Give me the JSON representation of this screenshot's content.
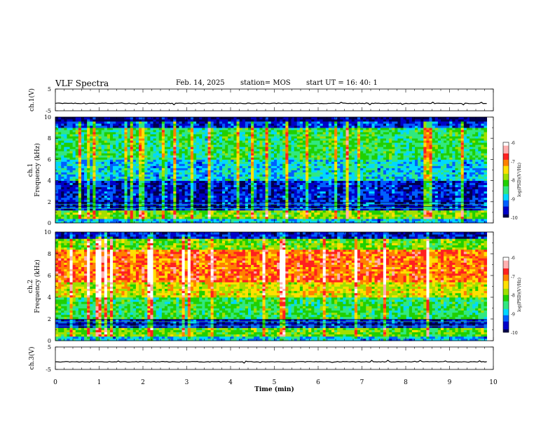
{
  "header": {
    "title": "VLF Spectra",
    "date": "Feb. 14, 2025",
    "station": "station= MOS",
    "start_ut": "start  UT =   16: 40: 1"
  },
  "chart_data": [
    {
      "type": "line",
      "name": "ch1-voltage",
      "ylabel": "ch.1(V)",
      "ylim": [
        -5,
        5
      ],
      "yticks": [
        "5",
        "-5"
      ],
      "x_range": [
        0,
        9.85
      ],
      "level": -1.6
    },
    {
      "type": "heatmap",
      "name": "ch1-spectrogram",
      "ylabel": "ch.1\nFrequency (kHz)",
      "ylim": [
        0,
        10
      ],
      "yticks": [
        "0",
        "2",
        "4",
        "6",
        "8",
        "10"
      ],
      "x_range": [
        0,
        9.85
      ],
      "bands": [
        {
          "from": 0,
          "to": 0.4,
          "level": -9.0
        },
        {
          "from": 0.4,
          "to": 1.3,
          "level": -8.0
        },
        {
          "from": 1.3,
          "to": 2.0,
          "level": -9.6
        },
        {
          "from": 2.0,
          "to": 4.0,
          "level": -9.6
        },
        {
          "from": 4.0,
          "to": 6.0,
          "level": -8.9
        },
        {
          "from": 6.0,
          "to": 9.0,
          "level": -8.4
        },
        {
          "from": 9.0,
          "to": 9.6,
          "level": -9.5
        },
        {
          "from": 9.6,
          "to": 10,
          "level": -10.0
        }
      ],
      "colorbar": {
        "label": "log(PSD)(V²/Hz)",
        "range": [
          -10,
          -6
        ],
        "ticks": [
          "-6",
          "-7",
          "-8",
          "-9",
          "-10"
        ]
      }
    },
    {
      "type": "heatmap",
      "name": "ch2-spectrogram",
      "ylabel": "ch.2\nFrequency (kHz)",
      "ylim": [
        0,
        10
      ],
      "yticks": [
        "0",
        "2",
        "4",
        "6",
        "8",
        "10"
      ],
      "x_range": [
        0,
        9.85
      ],
      "bands": [
        {
          "from": 0,
          "to": 0.4,
          "level": -9.0
        },
        {
          "from": 0.4,
          "to": 1.3,
          "level": -8.1
        },
        {
          "from": 1.3,
          "to": 2.0,
          "level": -9.6
        },
        {
          "from": 2.0,
          "to": 4.0,
          "level": -8.4
        },
        {
          "from": 4.0,
          "to": 5.5,
          "level": -7.6
        },
        {
          "from": 5.5,
          "to": 8.5,
          "level": -7.0
        },
        {
          "from": 8.5,
          "to": 9.4,
          "level": -8.0
        },
        {
          "from": 9.4,
          "to": 10,
          "level": -9.6
        }
      ],
      "colorbar": {
        "label": "log(PSD)(V²/Hz)",
        "range": [
          -10,
          -6
        ],
        "ticks": [
          "-6",
          "-7",
          "-8",
          "-9",
          "-10"
        ]
      }
    },
    {
      "type": "line",
      "name": "ch3-voltage",
      "ylabel": "ch.3(V)",
      "ylim": [
        -5,
        5
      ],
      "yticks": [
        "5",
        "-5"
      ],
      "x_range": [
        0,
        9.85
      ],
      "level": -1.6
    }
  ],
  "x_axis": {
    "label": "Time (min)",
    "range": [
      0,
      10
    ],
    "ticks": [
      "0",
      "1",
      "2",
      "3",
      "4",
      "5",
      "6",
      "7",
      "8",
      "9",
      "10"
    ]
  },
  "colors": {
    "scale": [
      "#000050",
      "#0000c8",
      "#0060ff",
      "#00d8ff",
      "#30e880",
      "#20d000",
      "#a0e000",
      "#ffe000",
      "#ff8000",
      "#ff2020",
      "#ffb0b0",
      "#ffffff"
    ]
  }
}
